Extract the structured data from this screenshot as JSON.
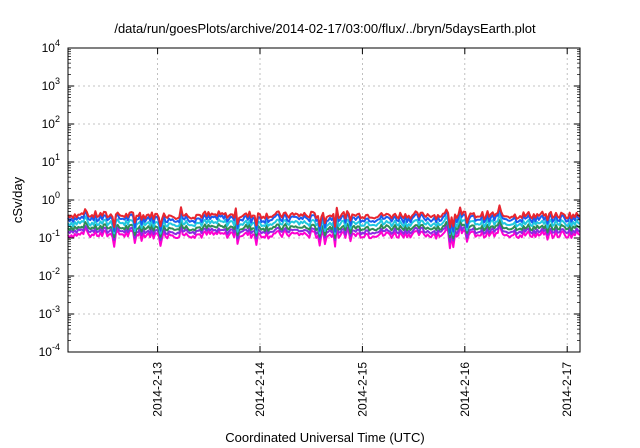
{
  "chart_data": {
    "type": "line",
    "title": "/data/run/goesPlots/archive/2014-02-17/03:00/flux/../bryn/5daysEarth.plot",
    "xlabel": "Coordinated Universal Time (UTC)",
    "ylabel": "cSv/day",
    "yscale": "log",
    "ylim": [
      0.0001,
      10000
    ],
    "xlim": [
      "2014-02-12 03:00",
      "2014-02-17 03:00"
    ],
    "grid": true,
    "legend": "none",
    "y_ticks": [
      {
        "value": 0.0001,
        "base": "10",
        "exp": "-4"
      },
      {
        "value": 0.001,
        "base": "10",
        "exp": "-3"
      },
      {
        "value": 0.01,
        "base": "10",
        "exp": "-2"
      },
      {
        "value": 0.1,
        "base": "10",
        "exp": "-1"
      },
      {
        "value": 1,
        "base": "10",
        "exp": "0"
      },
      {
        "value": 10,
        "base": "10",
        "exp": "1"
      },
      {
        "value": 100,
        "base": "10",
        "exp": "2"
      },
      {
        "value": 1000,
        "base": "10",
        "exp": "3"
      },
      {
        "value": 10000,
        "base": "10",
        "exp": "4"
      }
    ],
    "x_ticks": [
      {
        "date": "2014-02-13 00:00",
        "label": "2014-2-13"
      },
      {
        "date": "2014-02-14 00:00",
        "label": "2014-2-14"
      },
      {
        "date": "2014-02-15 00:00",
        "label": "2014-2-15"
      },
      {
        "date": "2014-02-16 00:00",
        "label": "2014-2-16"
      },
      {
        "date": "2014-02-17 00:00",
        "label": "2014-2-17"
      }
    ],
    "series": [
      {
        "color": "#e8262f",
        "level": 0.4,
        "variation": 0.25
      },
      {
        "color": "#1a5cf0",
        "level": 0.33,
        "variation": 0.3
      },
      {
        "color": "#20c8e0",
        "level": 0.25,
        "variation": 0.25
      },
      {
        "color": "#2e8b57",
        "level": 0.19,
        "variation": 0.22
      },
      {
        "color": "#8a2be2",
        "level": 0.155,
        "variation": 0.22
      },
      {
        "color": "#ff00d0",
        "level": 0.125,
        "variation": 0.28
      }
    ]
  }
}
